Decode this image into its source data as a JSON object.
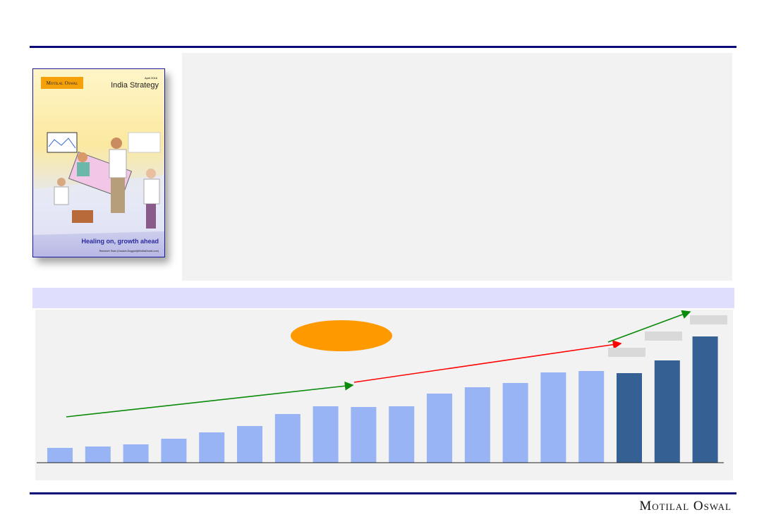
{
  "cover": {
    "logo": "Motilal Oswal",
    "date": "April 2016",
    "title": "India Strategy",
    "subtitle": "Healing on, growth ahead",
    "team": "Research Team (Gautam.Duggad@MotilalOswal.com)"
  },
  "footer": {
    "brand": "Motilal Oswal"
  },
  "colors": {
    "rule": "#0b0b7a",
    "bar_actual": "#98b4f4",
    "bar_forecast": "#356093",
    "trend_green": "#0a8a0a",
    "trend_red": "#ff0000",
    "oval": "#ff9900"
  },
  "chart_data": {
    "type": "bar",
    "values": [
      21,
      23,
      26,
      34,
      43,
      52,
      69,
      80,
      79,
      80,
      98,
      107,
      113,
      128,
      130,
      127,
      145,
      179
    ],
    "forecast_from_index": 15,
    "grid": false,
    "axes_labels": false
  }
}
